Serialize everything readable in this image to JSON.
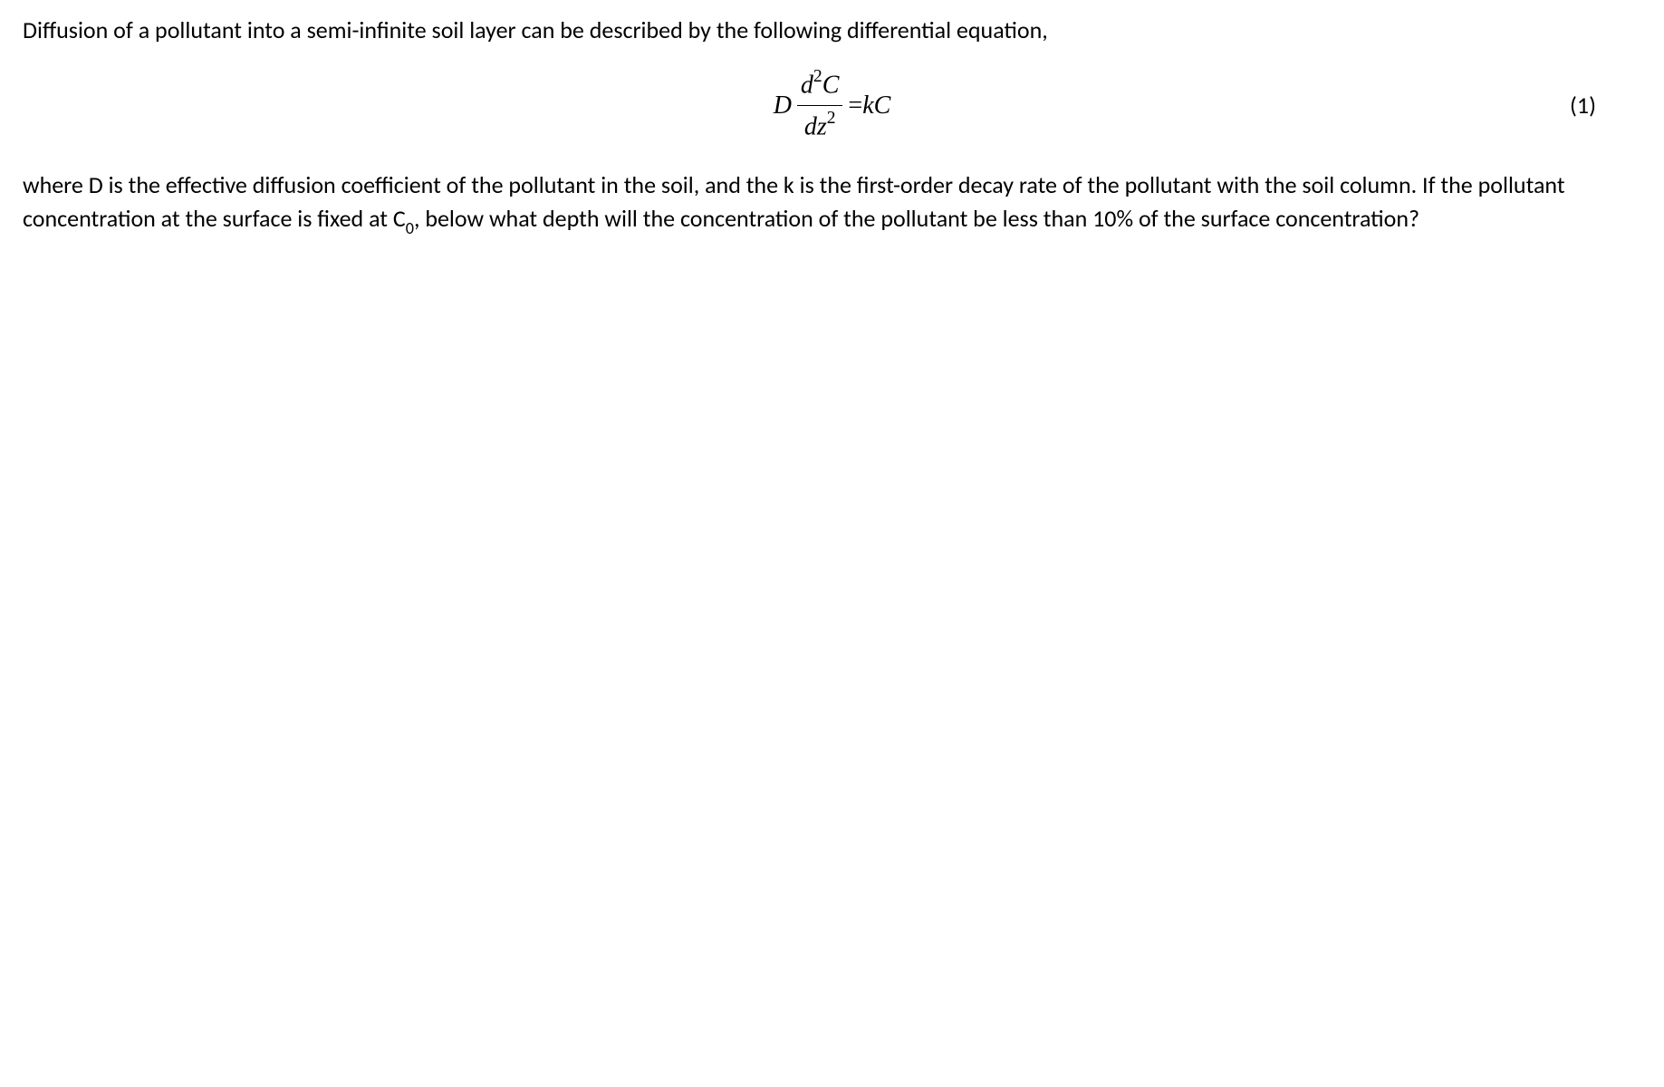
{
  "paragraph1": "Diffusion of a pollutant into a semi-infinite soil layer can be described by the following differential equation,",
  "equation": {
    "lhs_coeff": "D",
    "numerator_d": "d",
    "numerator_exp": "2",
    "numerator_var": "C",
    "denominator_d": "dz",
    "denominator_exp": "2",
    "equals": " = ",
    "rhs": "kC",
    "number": "(1)"
  },
  "paragraph2_part1": "where D is the effective diffusion coefficient of the pollutant in the soil, and the k is the first-order decay rate of the pollutant with the soil column. If the pollutant concentration at the surface is fixed at C",
  "paragraph2_sub": "0",
  "paragraph2_part2": ", below what depth will the concentration of the pollutant be less than 10% of the surface concentration?"
}
